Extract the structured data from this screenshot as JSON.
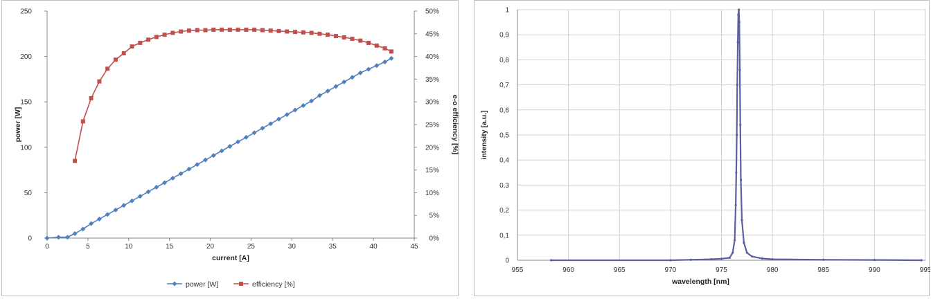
{
  "chart_data": [
    {
      "type": "line",
      "x_axis": {
        "label": "current [A]",
        "min": 0,
        "max": 45,
        "ticks": [
          "0",
          "5",
          "10",
          "15",
          "20",
          "25",
          "30",
          "35",
          "40",
          "45"
        ]
      },
      "y_axis": {
        "label": "power [W]",
        "min": 0,
        "max": 250,
        "ticks": [
          "0",
          "50",
          "100",
          "150",
          "200",
          "250"
        ]
      },
      "y2_axis": {
        "label": "e-o efficiency [%]",
        "min": 0,
        "max": 50,
        "ticks": [
          "0%",
          "5%",
          "10%",
          "15%",
          "20%",
          "25%",
          "30%",
          "35%",
          "40%",
          "45%",
          "50%"
        ]
      },
      "grid": false,
      "legend": {
        "placement": "bottom"
      },
      "series": [
        {
          "name": "power [W]",
          "axis": "left",
          "color": "#4f81bd",
          "marker": "diamond",
          "x": [
            0,
            1.4,
            2.5,
            3.4,
            4.4,
            5.4,
            6.4,
            7.4,
            8.4,
            9.4,
            10.4,
            11.4,
            12.4,
            13.4,
            14.4,
            15.4,
            16.4,
            17.4,
            18.4,
            19.4,
            20.4,
            21.4,
            22.4,
            23.4,
            24.4,
            25.4,
            26.4,
            27.4,
            28.4,
            29.4,
            30.4,
            31.4,
            32.4,
            33.4,
            34.4,
            35.4,
            36.4,
            37.4,
            38.4,
            39.4,
            40.4,
            41.4,
            42.2
          ],
          "values": [
            0,
            1,
            1,
            5,
            10,
            16,
            21,
            26,
            31,
            36,
            41,
            46,
            51,
            56,
            61,
            66,
            71,
            76,
            81,
            86,
            91,
            96,
            101,
            106,
            111,
            116,
            121,
            126,
            131,
            136,
            141,
            146,
            151,
            157,
            162,
            167,
            172,
            177,
            182,
            186,
            190,
            194,
            198
          ]
        },
        {
          "name": "efficiency [%]",
          "axis": "right",
          "color": "#c0504d",
          "marker": "square",
          "x": [
            3.4,
            4.4,
            5.4,
            6.4,
            7.4,
            8.4,
            9.4,
            10.4,
            11.4,
            12.4,
            13.4,
            14.4,
            15.4,
            16.4,
            17.4,
            18.4,
            19.4,
            20.4,
            21.4,
            22.4,
            23.4,
            24.4,
            25.4,
            26.4,
            27.4,
            28.4,
            29.4,
            30.4,
            31.4,
            32.4,
            33.4,
            34.4,
            35.4,
            36.4,
            37.4,
            38.4,
            39.4,
            40.4,
            41.4,
            42.2
          ],
          "values": [
            17,
            25.7,
            30.8,
            34.5,
            37.3,
            39.3,
            40.7,
            42.2,
            43,
            43.7,
            44.3,
            44.8,
            45.2,
            45.5,
            45.7,
            45.8,
            45.8,
            45.9,
            45.9,
            45.9,
            45.9,
            45.9,
            45.9,
            45.8,
            45.7,
            45.6,
            45.5,
            45.4,
            45.3,
            45.2,
            45,
            44.8,
            44.5,
            44.2,
            43.9,
            43.5,
            43,
            42.4,
            41.8,
            41.1
          ]
        }
      ]
    },
    {
      "type": "line",
      "x_axis": {
        "label": "wavelength [nm]",
        "min": 955,
        "max": 995,
        "ticks": [
          "955",
          "960",
          "965",
          "970",
          "975",
          "980",
          "985",
          "990",
          "995"
        ]
      },
      "y_axis": {
        "label": "intensity [a.u.]",
        "min": 0,
        "max": 1,
        "ticks": [
          "0",
          "0,1",
          "0,2",
          "0,3",
          "0,4",
          "0,5",
          "0,6",
          "0,7",
          "0,8",
          "0,9",
          "1"
        ]
      },
      "grid": true,
      "legend": {
        "placement": "none"
      },
      "series": [
        {
          "color": "#5b5fa0",
          "marker": "small-dot",
          "x": [
            958.3,
            970,
            972,
            974,
            975,
            975.8,
            976.1,
            976.3,
            976.4,
            976.45,
            976.5,
            976.55,
            976.6,
            976.65,
            976.7,
            976.75,
            976.8,
            976.85,
            976.9,
            977,
            977.2,
            977.5,
            978,
            979,
            980,
            985,
            990,
            994.6
          ],
          "values": [
            0,
            0,
            0.002,
            0.004,
            0.006,
            0.01,
            0.03,
            0.08,
            0.22,
            0.35,
            0.5,
            0.7,
            0.87,
            0.98,
            1.0,
            0.95,
            0.76,
            0.54,
            0.32,
            0.16,
            0.07,
            0.03,
            0.015,
            0.007,
            0.004,
            0.002,
            0.001,
            0
          ]
        }
      ]
    }
  ]
}
